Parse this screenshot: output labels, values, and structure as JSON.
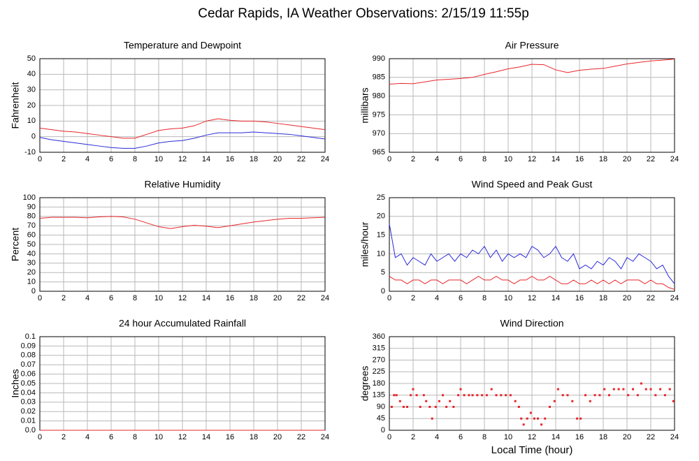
{
  "title": "Cedar Rapids, IA Weather Observations: 2/15/19 11:55p",
  "chart_data": [
    {
      "type": "line",
      "title": "Temperature and Dewpoint",
      "ylabel": "Fahrenheit",
      "xlim": [
        0,
        24
      ],
      "xticks": [
        0,
        2,
        4,
        6,
        8,
        10,
        12,
        14,
        16,
        18,
        20,
        22,
        24
      ],
      "ylim": [
        -10,
        50
      ],
      "yticks": [
        -10,
        0,
        10,
        20,
        30,
        40,
        50
      ],
      "grid": true,
      "x": [
        0,
        1,
        2,
        3,
        4,
        5,
        6,
        7,
        8,
        9,
        10,
        11,
        12,
        13,
        14,
        15,
        16,
        17,
        18,
        19,
        20,
        21,
        22,
        23,
        24
      ],
      "series": [
        {
          "color": "#e8262b",
          "values": [
            5.5,
            4.5,
            3.5,
            3,
            2,
            1,
            0,
            -1,
            -1,
            1.5,
            4,
            5,
            5.5,
            7,
            10,
            11.5,
            10.5,
            10,
            10,
            9.5,
            8.5,
            7.5,
            6.5,
            5.5,
            4.5
          ]
        },
        {
          "color": "#2a2adb",
          "values": [
            -0.5,
            -2,
            -3,
            -4,
            -5,
            -6,
            -7,
            -7.5,
            -7.5,
            -6,
            -4,
            -3,
            -2.5,
            -1,
            1,
            2.5,
            2.5,
            2.5,
            3,
            2.5,
            2,
            1.5,
            0.5,
            -0.5,
            -1.5
          ]
        }
      ]
    },
    {
      "type": "line",
      "title": "Air Pressure",
      "ylabel": "millibars",
      "xlim": [
        0,
        24
      ],
      "xticks": [
        0,
        2,
        4,
        6,
        8,
        10,
        12,
        14,
        16,
        18,
        20,
        22,
        24
      ],
      "ylim": [
        965,
        990
      ],
      "yticks": [
        965,
        970,
        975,
        980,
        985,
        990
      ],
      "grid": true,
      "x": [
        0,
        1,
        2,
        3,
        4,
        5,
        6,
        7,
        8,
        9,
        10,
        11,
        12,
        13,
        14,
        15,
        16,
        17,
        18,
        19,
        20,
        21,
        22,
        23,
        24
      ],
      "series": [
        {
          "color": "#e8262b",
          "values": [
            983.2,
            983.4,
            983.3,
            983.8,
            984.3,
            984.5,
            984.7,
            985,
            985.8,
            986.5,
            987.3,
            987.8,
            988.5,
            988.4,
            987,
            986.3,
            986.9,
            987.2,
            987.4,
            988,
            988.6,
            989,
            989.4,
            989.6,
            989.9
          ]
        }
      ]
    },
    {
      "type": "line",
      "title": "Relative Humidity",
      "ylabel": "Percent",
      "xlim": [
        0,
        24
      ],
      "xticks": [
        0,
        2,
        4,
        6,
        8,
        10,
        12,
        14,
        16,
        18,
        20,
        22,
        24
      ],
      "ylim": [
        0,
        100
      ],
      "yticks": [
        0,
        10,
        20,
        30,
        40,
        50,
        60,
        70,
        80,
        90,
        100
      ],
      "grid": true,
      "x": [
        0,
        1,
        2,
        3,
        4,
        5,
        6,
        7,
        8,
        9,
        10,
        11,
        12,
        13,
        14,
        15,
        16,
        17,
        18,
        19,
        20,
        21,
        22,
        23,
        24
      ],
      "series": [
        {
          "color": "#e8262b",
          "values": [
            78,
            79,
            79,
            79,
            78.5,
            79.5,
            80,
            79.5,
            77,
            73,
            69,
            67,
            69,
            70.5,
            69.5,
            68,
            70,
            72,
            74,
            75.5,
            77,
            78,
            78,
            78.5,
            79
          ]
        }
      ]
    },
    {
      "type": "line",
      "title": "Wind Speed and Peak Gust",
      "ylabel": "miles/hour",
      "xlim": [
        0,
        24
      ],
      "xticks": [
        0,
        2,
        4,
        6,
        8,
        10,
        12,
        14,
        16,
        18,
        20,
        22,
        24
      ],
      "ylim": [
        0,
        25
      ],
      "yticks": [
        0,
        5,
        10,
        15,
        20,
        25
      ],
      "grid": true,
      "x": [
        0,
        0.5,
        1,
        1.5,
        2,
        2.5,
        3,
        3.5,
        4,
        4.5,
        5,
        5.5,
        6,
        6.5,
        7,
        7.5,
        8,
        8.5,
        9,
        9.5,
        10,
        10.5,
        11,
        11.5,
        12,
        12.5,
        13,
        13.5,
        14,
        14.5,
        15,
        15.5,
        16,
        16.5,
        17,
        17.5,
        18,
        18.5,
        19,
        19.5,
        20,
        20.5,
        21,
        21.5,
        22,
        22.5,
        23,
        23.5,
        24
      ],
      "series": [
        {
          "color": "#2a2adb",
          "values": [
            18,
            9,
            10,
            7,
            9,
            8,
            7,
            10,
            8,
            9,
            10,
            8,
            10,
            9,
            11,
            10,
            12,
            9,
            11,
            8,
            10,
            9,
            10,
            9,
            12,
            11,
            9,
            10,
            12,
            9,
            8,
            10,
            6,
            7,
            6,
            8,
            7,
            9,
            8,
            6,
            9,
            8,
            10,
            9,
            8,
            6,
            7,
            4,
            2
          ]
        },
        {
          "color": "#e8262b",
          "values": [
            4,
            3,
            3,
            2,
            3,
            3,
            2,
            3,
            3,
            2,
            3,
            3,
            3,
            2,
            3,
            4,
            3,
            3,
            4,
            3,
            3,
            2,
            3,
            3,
            4,
            3,
            3,
            4,
            3,
            2,
            2,
            3,
            2,
            2,
            3,
            2,
            3,
            2,
            3,
            2,
            3,
            3,
            3,
            2,
            3,
            2,
            2,
            1,
            0.5
          ]
        }
      ]
    },
    {
      "type": "line",
      "title": "24 hour Accumulated Rainfall",
      "ylabel": "Inches",
      "xlim": [
        0,
        24
      ],
      "xticks": [
        0,
        2,
        4,
        6,
        8,
        10,
        12,
        14,
        16,
        18,
        20,
        22,
        24
      ],
      "ylim": [
        0,
        0.1
      ],
      "yticks": [
        {
          "value": 0,
          "label": "0.0"
        },
        0.01,
        0.02,
        0.03,
        0.04,
        0.05,
        0.06,
        0.07,
        0.08,
        0.09,
        0.1
      ],
      "grid": true,
      "x": [
        0,
        24
      ],
      "series": [
        {
          "color": "#e8262b",
          "values": [
            0,
            0
          ]
        }
      ]
    },
    {
      "type": "scatter",
      "title": "Wind Direction",
      "ylabel": "degrees",
      "xlabel": "Local Time (hour)",
      "xlim": [
        0,
        24
      ],
      "xticks": [
        0,
        2,
        4,
        6,
        8,
        10,
        12,
        14,
        16,
        18,
        20,
        22,
        24
      ],
      "ylim": [
        0,
        360
      ],
      "yticks": [
        0,
        45,
        90,
        135,
        180,
        225,
        270,
        315,
        360
      ],
      "grid": true,
      "x": [
        0.2,
        0.4,
        0.6,
        0.9,
        1.2,
        1.5,
        1.8,
        2.0,
        2.3,
        2.6,
        2.9,
        3.1,
        3.4,
        3.6,
        3.9,
        4.2,
        4.5,
        4.8,
        5.1,
        5.4,
        5.8,
        6.0,
        6.3,
        6.7,
        7.0,
        7.4,
        7.8,
        8.2,
        8.6,
        9.0,
        9.4,
        9.8,
        10.2,
        10.6,
        10.9,
        11.1,
        11.3,
        11.6,
        11.9,
        12.2,
        12.5,
        12.8,
        13.1,
        13.5,
        13.9,
        14.2,
        14.6,
        15.0,
        15.4,
        15.8,
        16.1,
        16.5,
        16.9,
        17.3,
        17.7,
        18.1,
        18.5,
        18.9,
        19.3,
        19.7,
        20.1,
        20.5,
        20.9,
        21.2,
        21.6,
        22.0,
        22.4,
        22.8,
        23.2,
        23.6,
        23.9
      ],
      "series": [
        {
          "color": "#e8262b",
          "values": [
            90,
            135,
            135,
            112,
            90,
            90,
            135,
            158,
            135,
            90,
            135,
            112,
            90,
            45,
            90,
            112,
            135,
            90,
            112,
            90,
            135,
            158,
            135,
            135,
            135,
            135,
            135,
            135,
            158,
            135,
            135,
            135,
            135,
            112,
            90,
            45,
            22,
            45,
            67,
            45,
            45,
            22,
            45,
            90,
            112,
            158,
            135,
            135,
            112,
            45,
            45,
            135,
            112,
            135,
            135,
            158,
            135,
            158,
            158,
            158,
            135,
            158,
            135,
            180,
            158,
            158,
            135,
            158,
            135,
            158,
            112
          ]
        }
      ]
    }
  ]
}
